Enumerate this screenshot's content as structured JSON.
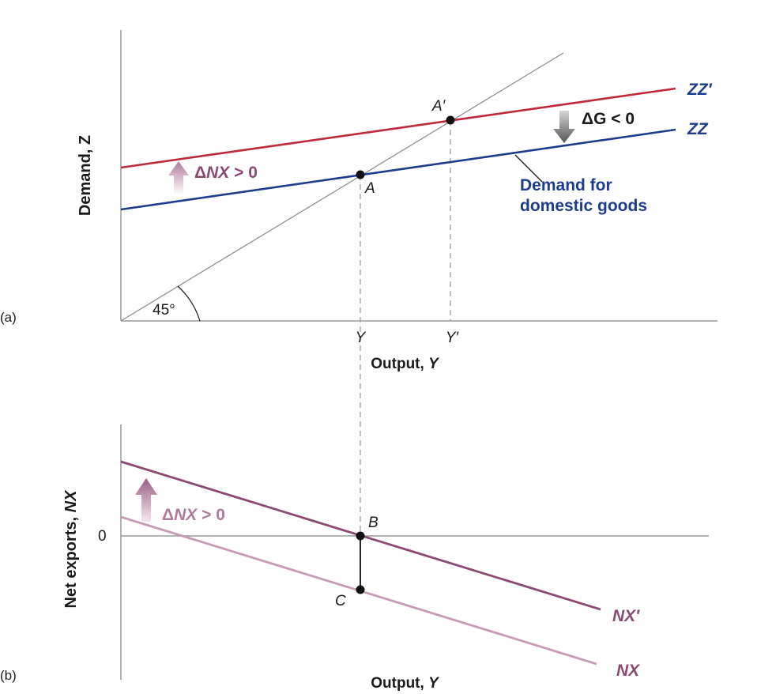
{
  "panel_a": {
    "panel_label": "(a)",
    "y_axis_title": "Demand, Z",
    "x_axis_title_prefix": "Output, ",
    "x_axis_title_var": "Y",
    "tick_y": "Y",
    "tick_y_prime": "Y′",
    "angle_label": "45°",
    "point_a": "A",
    "point_a_prime": "A′",
    "curve_zz_prime": "ZZ′",
    "curve_zz": "ZZ",
    "shift_up_delta": "Δ",
    "shift_up_var": "NX",
    "shift_up_rel": " > 0",
    "shift_down_label": "ΔG < 0",
    "callout_line1": "Demand for",
    "callout_line2": "domestic goods"
  },
  "panel_b": {
    "panel_label": "(b)",
    "y_axis_title_prefix": "Net exports, ",
    "y_axis_title_var": "NX",
    "zero_label": "0",
    "x_axis_title_prefix": "Output, ",
    "x_axis_title_var": "Y",
    "point_b": "B",
    "point_c": "C",
    "curve_nx_prime": "NX′",
    "curve_nx": "NX",
    "shift_up_delta": "Δ",
    "shift_up_var": "NX",
    "shift_up_rel": " > 0"
  },
  "colors": {
    "zz_prime": "#c0283a",
    "zz": "#1e3c8c",
    "nx_prime": "#8a4a72",
    "nx": "#c79ab6",
    "arrow_up": "#b07a9c",
    "arrow_down": "#6e6e6e",
    "axis": "#9a9a9a",
    "guide": "#9a9a9a"
  }
}
